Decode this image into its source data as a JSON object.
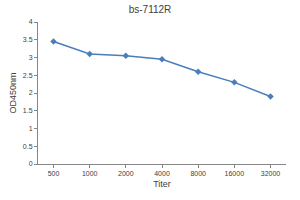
{
  "chart_data": {
    "type": "line",
    "title": "bs-7112R",
    "x_label": "Titer",
    "y_label": "OD450nm",
    "categories": [
      "500",
      "1000",
      "2000",
      "4000",
      "8000",
      "16000",
      "32000"
    ],
    "values": [
      3.45,
      3.1,
      3.05,
      2.95,
      2.6,
      2.3,
      1.9
    ],
    "color": "#4a7ebb",
    "marker": "diamond",
    "ylim": [
      0,
      4
    ],
    "yticks": [
      0,
      0.5,
      1,
      1.5,
      2,
      2.5,
      3,
      3.5,
      4
    ],
    "grid": false
  }
}
